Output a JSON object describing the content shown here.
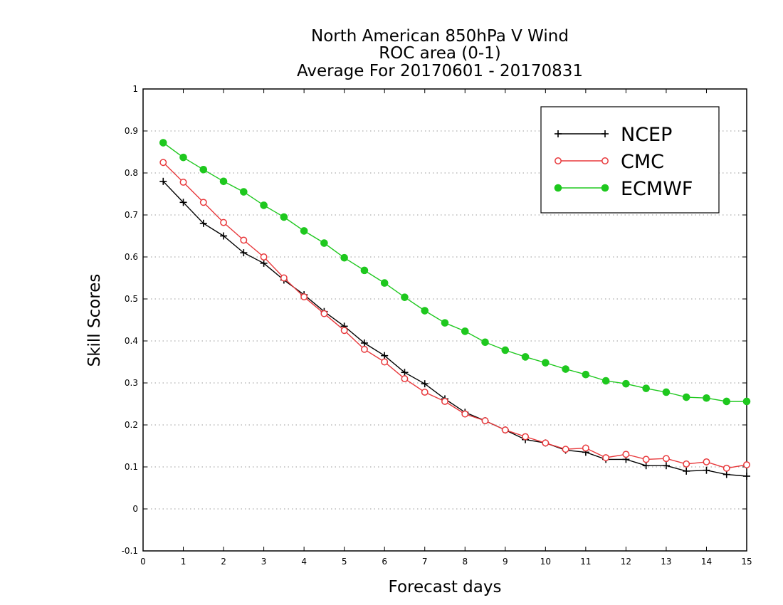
{
  "chart_data": {
    "type": "line",
    "title": "North American 850hPa V Wind",
    "subtitle_lines": [
      "ROC area (0-1)",
      "Average For 20170601 - 20170831"
    ],
    "xlabel": "Forecast days",
    "ylabel": "Skill Scores",
    "xlim": [
      0,
      15
    ],
    "ylim": [
      -0.1,
      1
    ],
    "xticks": [
      "0",
      "1",
      "2",
      "3",
      "4",
      "5",
      "6",
      "7",
      "8",
      "9",
      "10",
      "11",
      "12",
      "13",
      "14",
      "15"
    ],
    "yticks": [
      "-0.1",
      "0",
      "0.1",
      "0.2",
      "0.3",
      "0.4",
      "0.5",
      "0.6",
      "0.7",
      "0.8",
      "0.9",
      "1"
    ],
    "grid": "dotted horizontal",
    "legend_position": "top-right",
    "x": [
      0.5,
      1,
      1.5,
      2,
      2.5,
      3,
      3.5,
      4,
      4.5,
      5,
      5.5,
      6,
      6.5,
      7,
      7.5,
      8,
      8.5,
      9,
      9.5,
      10,
      10.5,
      11,
      11.5,
      12,
      12.5,
      13,
      13.5,
      14,
      14.5,
      15
    ],
    "series": [
      {
        "name": "NCEP",
        "color": "#000000",
        "marker": "plus",
        "values": [
          0.78,
          0.73,
          0.68,
          0.65,
          0.61,
          0.585,
          0.545,
          0.51,
          0.47,
          0.435,
          0.395,
          0.365,
          0.325,
          0.298,
          0.262,
          0.23,
          0.21,
          0.188,
          0.165,
          0.157,
          0.14,
          0.135,
          0.118,
          0.118,
          0.103,
          0.103,
          0.09,
          0.092,
          0.082,
          0.078
        ]
      },
      {
        "name": "CMC",
        "color": "#e8383b",
        "marker": "open-circle",
        "values": [
          0.825,
          0.778,
          0.73,
          0.682,
          0.64,
          0.6,
          0.55,
          0.505,
          0.465,
          0.425,
          0.38,
          0.35,
          0.31,
          0.278,
          0.256,
          0.226,
          0.21,
          0.188,
          0.172,
          0.157,
          0.142,
          0.145,
          0.122,
          0.13,
          0.118,
          0.12,
          0.107,
          0.112,
          0.097,
          0.105
        ]
      },
      {
        "name": "ECMWF",
        "color": "#1ec81e",
        "marker": "filled-circle",
        "values": [
          0.872,
          0.837,
          0.808,
          0.78,
          0.755,
          0.723,
          0.695,
          0.662,
          0.633,
          0.598,
          0.568,
          0.538,
          0.504,
          0.472,
          0.443,
          0.423,
          0.397,
          0.378,
          0.362,
          0.348,
          0.333,
          0.32,
          0.305,
          0.298,
          0.287,
          0.278,
          0.266,
          0.264,
          0.256,
          0.256
        ]
      }
    ]
  }
}
